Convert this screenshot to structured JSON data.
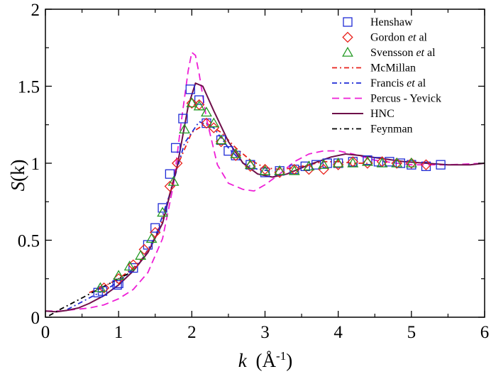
{
  "chart_data": {
    "type": "scatter",
    "xlabel": {
      "symbol": "k",
      "unit": "(Å",
      "sup": "-1",
      "close": ")"
    },
    "ylabel": {
      "symbol": "S",
      "arg": "(k)"
    },
    "xlim": [
      0,
      6
    ],
    "ylim": [
      0,
      2
    ],
    "xticks": [
      0,
      1,
      2,
      3,
      4,
      5,
      6
    ],
    "yticks": [
      0,
      0.5,
      1,
      1.5,
      2
    ],
    "ytick_labels": [
      "0",
      "0.5",
      "1",
      "1.5",
      "2"
    ],
    "legend_position": "top-right",
    "colors": {
      "blue": "#1f2bd6",
      "red": "#e8211b",
      "green": "#229922",
      "magenta": "#ee1fd6",
      "maroon": "#6e0f4a",
      "black": "#000000"
    },
    "series": [
      {
        "name": "Henshaw",
        "kind": "markers",
        "marker": "square",
        "color": "#1f2bd6",
        "x": [
          0.72,
          0.78,
          0.98,
          1.0,
          1.2,
          1.4,
          1.5,
          1.6,
          1.7,
          1.78,
          1.88,
          1.98,
          2.1,
          2.2,
          2.4,
          2.5,
          2.6,
          2.8,
          3.0,
          3.2,
          3.4,
          3.55,
          3.7,
          3.85,
          4.0,
          4.2,
          4.4,
          4.55,
          4.7,
          4.85,
          5.0,
          5.2,
          5.4
        ],
        "y": [
          0.16,
          0.17,
          0.21,
          0.22,
          0.32,
          0.47,
          0.58,
          0.71,
          0.93,
          1.1,
          1.29,
          1.48,
          1.41,
          1.26,
          1.15,
          1.08,
          1.05,
          0.99,
          0.94,
          0.95,
          0.96,
          0.98,
          0.99,
          1.0,
          1.0,
          1.01,
          1.02,
          1.01,
          1.01,
          1.0,
          0.99,
          0.98,
          0.99
        ]
      },
      {
        "name": "Gordon et al",
        "name_pre": "Gordon ",
        "name_em": "et",
        "name_post": " al",
        "kind": "markers",
        "marker": "diamond",
        "color": "#e8211b",
        "x": [
          0.8,
          1.0,
          1.2,
          1.35,
          1.5,
          1.7,
          1.8,
          2.0,
          2.1,
          2.2,
          2.3,
          2.4,
          2.6,
          2.8,
          3.0,
          3.2,
          3.4,
          3.6,
          3.8,
          4.0,
          4.2,
          4.4,
          4.6,
          4.8,
          5.0,
          5.2
        ],
        "y": [
          0.19,
          0.25,
          0.34,
          0.44,
          0.55,
          0.85,
          1.0,
          1.39,
          1.38,
          1.26,
          1.23,
          1.14,
          1.05,
          0.98,
          0.96,
          0.94,
          0.96,
          0.96,
          0.96,
          0.99,
          1.01,
          1.0,
          1.01,
          1.0,
          1.0,
          0.99
        ]
      },
      {
        "name": "Svensson et al",
        "name_pre": "Svensson ",
        "name_em": "et",
        "name_post": " al",
        "kind": "markers",
        "marker": "triangle",
        "color": "#229922",
        "x": [
          0.75,
          1.0,
          1.15,
          1.3,
          1.45,
          1.6,
          1.75,
          1.9,
          2.0,
          2.1,
          2.2,
          2.3,
          2.4,
          2.6,
          2.8,
          3.0,
          3.2,
          3.4,
          3.6,
          3.8,
          4.0,
          4.2,
          4.4,
          4.6,
          4.8,
          5.0
        ],
        "y": [
          0.19,
          0.27,
          0.33,
          0.4,
          0.51,
          0.68,
          0.88,
          1.22,
          1.39,
          1.37,
          1.33,
          1.26,
          1.15,
          1.06,
          0.99,
          0.95,
          0.95,
          0.95,
          0.98,
          0.99,
          1.0,
          1.0,
          1.01,
          1.0,
          1.0,
          1.0
        ]
      },
      {
        "name": "McMillan",
        "kind": "line",
        "dash": "dashdot",
        "color": "#e8211b",
        "x": [
          0.6,
          0.8,
          1.0,
          1.2,
          1.4,
          1.6,
          1.8,
          2.0,
          2.2,
          2.4,
          2.6,
          2.8,
          3.0,
          3.2,
          3.4,
          3.6,
          3.8,
          4.0,
          4.2,
          4.4
        ],
        "y": [
          0.16,
          0.2,
          0.25,
          0.32,
          0.42,
          0.63,
          0.98,
          1.2,
          1.26,
          1.2,
          1.1,
          1.02,
          0.97,
          0.96,
          0.97,
          0.99,
          1.01,
          1.01,
          1.0,
          1.0
        ]
      },
      {
        "name": "Francis et al",
        "name_pre": "Francis ",
        "name_em": "et",
        "name_post": " al",
        "kind": "line",
        "dash": "dashdot",
        "color": "#1f2bd6",
        "x": [
          0.3,
          0.5,
          0.7,
          0.9,
          1.1,
          1.3,
          1.5,
          1.7,
          1.9,
          2.1,
          2.3,
          2.5,
          2.7,
          2.9,
          3.1
        ],
        "y": [
          0.05,
          0.1,
          0.15,
          0.2,
          0.27,
          0.36,
          0.52,
          0.8,
          1.13,
          1.27,
          1.23,
          1.1,
          1.0,
          0.96,
          0.95
        ]
      },
      {
        "name": "Percus - Yevick",
        "kind": "line",
        "dash": "dash",
        "color": "#ee1fd6",
        "x": [
          0.0,
          0.2,
          0.4,
          0.6,
          0.8,
          1.0,
          1.2,
          1.4,
          1.6,
          1.75,
          1.85,
          1.95,
          2.0,
          2.05,
          2.1,
          2.2,
          2.35,
          2.5,
          2.7,
          2.85,
          3.0,
          3.2,
          3.4,
          3.6,
          3.8,
          4.0,
          4.2,
          4.5,
          4.8,
          5.0,
          5.5,
          6.0
        ],
        "y": [
          0.04,
          0.04,
          0.05,
          0.06,
          0.08,
          0.12,
          0.18,
          0.29,
          0.51,
          0.86,
          1.25,
          1.6,
          1.72,
          1.7,
          1.58,
          1.29,
          0.99,
          0.87,
          0.83,
          0.82,
          0.86,
          0.93,
          1.01,
          1.06,
          1.08,
          1.08,
          1.06,
          1.02,
          1.0,
          0.99,
          0.99,
          1.0
        ]
      },
      {
        "name": "HNC",
        "kind": "line",
        "dash": "solid",
        "color": "#6e0f4a",
        "x": [
          0.0,
          0.15,
          0.3,
          0.45,
          0.6,
          0.8,
          1.0,
          1.2,
          1.4,
          1.6,
          1.8,
          1.95,
          2.05,
          2.15,
          2.3,
          2.5,
          2.7,
          2.9,
          3.1,
          3.3,
          3.6,
          3.9,
          4.1,
          4.3,
          4.6,
          4.9,
          5.2,
          5.5,
          5.8,
          6.0
        ],
        "y": [
          0.04,
          0.035,
          0.045,
          0.06,
          0.09,
          0.14,
          0.21,
          0.3,
          0.42,
          0.61,
          0.98,
          1.37,
          1.52,
          1.5,
          1.34,
          1.14,
          1.0,
          0.93,
          0.91,
          0.93,
          0.99,
          1.04,
          1.06,
          1.05,
          1.03,
          1.01,
          1.0,
          0.99,
          0.99,
          1.0
        ]
      },
      {
        "name": "Feynman",
        "kind": "line",
        "dash": "dashdot",
        "color": "#000000",
        "x": [
          0.05,
          0.2,
          0.4,
          0.6,
          0.8,
          1.0,
          1.2
        ],
        "y": [
          0.01,
          0.05,
          0.1,
          0.15,
          0.2,
          0.25,
          0.3
        ]
      }
    ]
  }
}
